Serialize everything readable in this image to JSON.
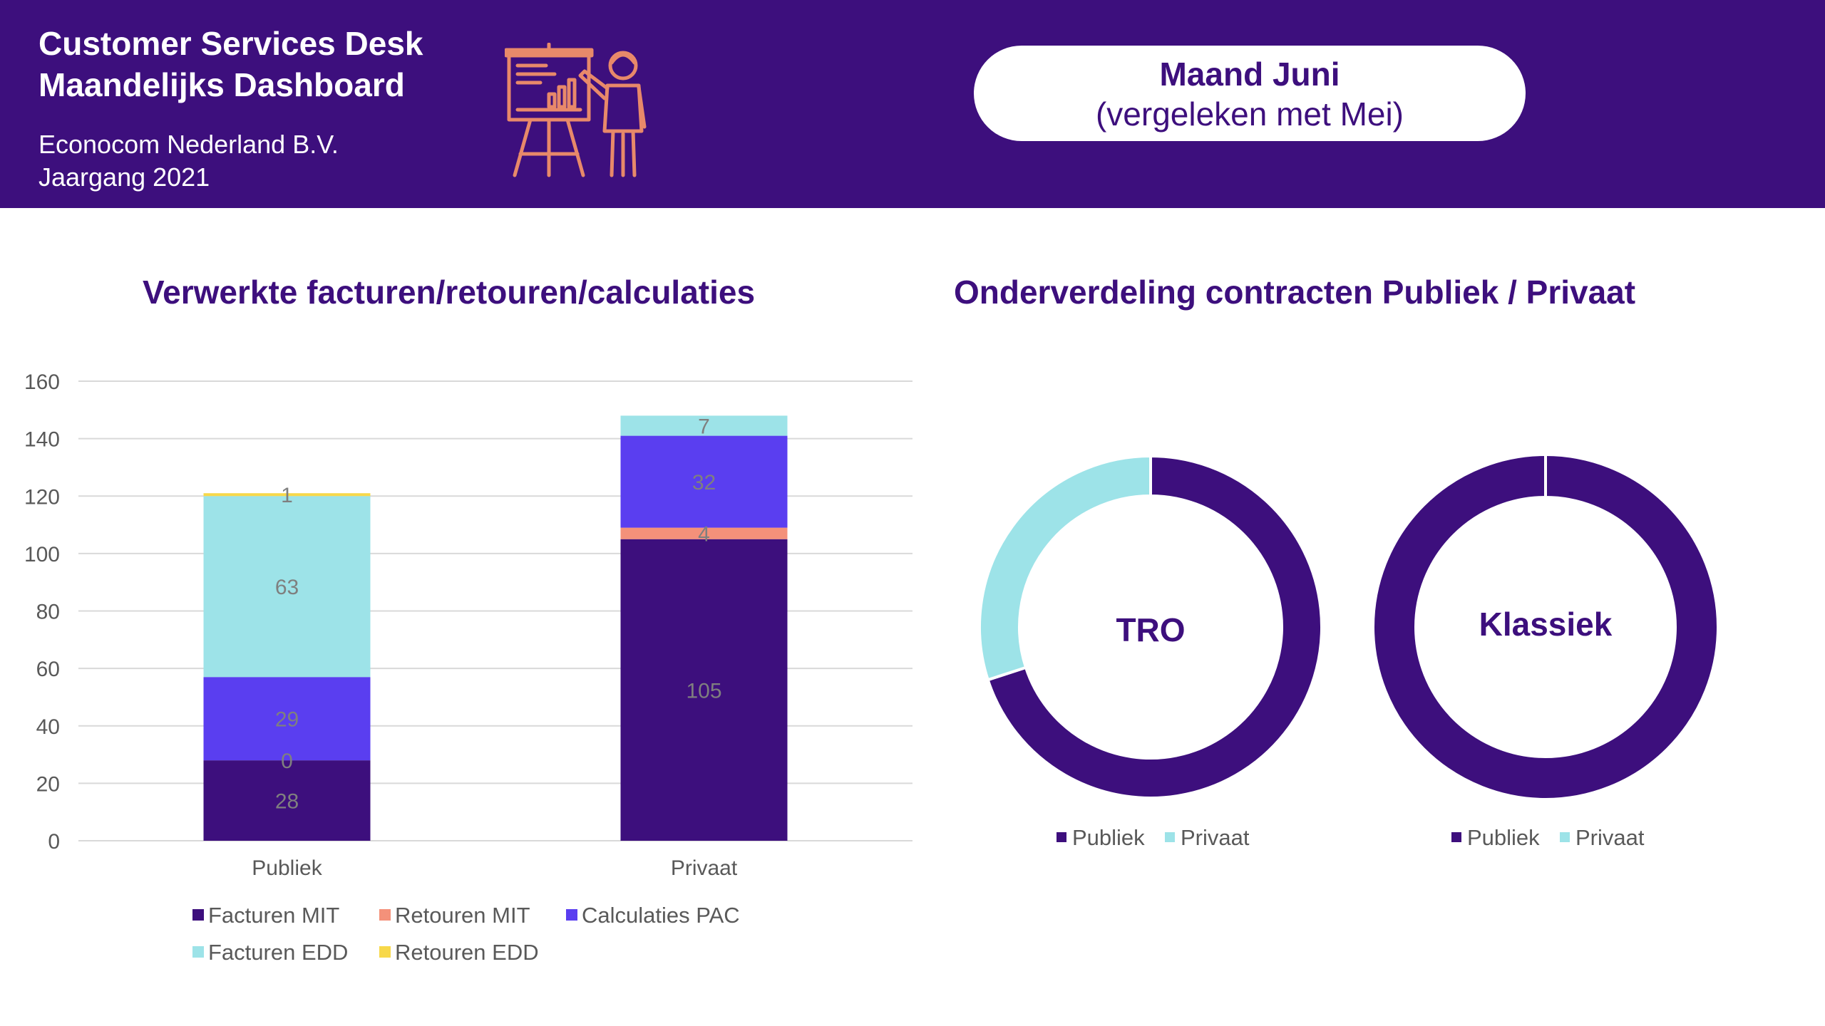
{
  "header": {
    "title_line1": "Customer Services Desk",
    "title_line2": "Maandelijks Dashboard",
    "company": "Econocom Nederland B.V.",
    "year": "Jaargang 2021",
    "icon": "presentation-icon",
    "background": "#3d0f7d",
    "icon_color": "#e8896a"
  },
  "month": {
    "line1": "Maand Juni",
    "line2": "(vergeleken met Mei)"
  },
  "chart_data": [
    {
      "type": "bar",
      "stacked": true,
      "title": "Verwerkte facturen/retouren/calculaties",
      "categories": [
        "Publiek",
        "Privaat"
      ],
      "ylim": [
        0,
        160
      ],
      "yticks": [
        0,
        20,
        40,
        60,
        80,
        100,
        120,
        140,
        160
      ],
      "grid": true,
      "legend": "bottom",
      "series": [
        {
          "name": "Facturen MIT",
          "values": [
            28,
            105
          ],
          "color": "#3d0f7d"
        },
        {
          "name": "Retouren MIT",
          "values": [
            0,
            4
          ],
          "color": "#f4917a"
        },
        {
          "name": "Calculaties PAC",
          "values": [
            29,
            32
          ],
          "color": "#5a3ef0"
        },
        {
          "name": "Facturen EDD",
          "values": [
            63,
            7
          ],
          "color": "#9de3e8"
        },
        {
          "name": "Retouren EDD",
          "values": [
            1,
            0
          ],
          "color": "#f7d84a"
        }
      ]
    },
    {
      "type": "pie",
      "donut": true,
      "title": "Onderverdeling contracten Publiek / Privaat",
      "center_label": "TRO",
      "legend": "bottom",
      "categories": [
        "Publiek",
        "Privaat"
      ],
      "values": [
        70,
        30
      ],
      "colors": [
        "#3d0f7d",
        "#9de3e8"
      ]
    },
    {
      "type": "pie",
      "donut": true,
      "center_label": "Klassiek",
      "legend": "bottom",
      "categories": [
        "Publiek",
        "Privaat"
      ],
      "values": [
        100,
        0
      ],
      "colors": [
        "#3d0f7d",
        "#9de3e8"
      ]
    }
  ]
}
